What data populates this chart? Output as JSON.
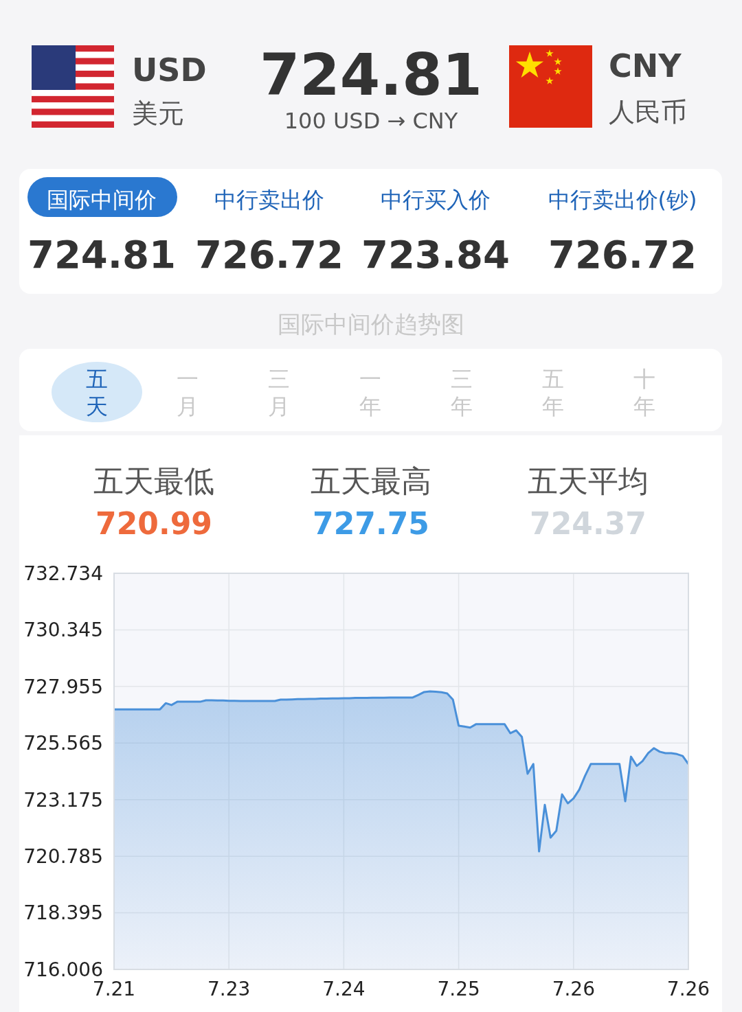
{
  "chart_data": {
    "type": "area",
    "title": "国际中间价趋势图",
    "annotations": [
      "USD",
      "美元",
      "724.81",
      "100 USD → CNY",
      "CNY",
      "人民币",
      "国际中间价",
      "中行卖出价",
      "中行买入价",
      "中行卖出价(钞)",
      "724.81",
      "726.72",
      "723.84",
      "726.72",
      "五天",
      "一月",
      "三月",
      "一年",
      "三年",
      "五年",
      "十年",
      "五天最低",
      "720.99",
      "五天最高",
      "727.75",
      "五天平均",
      "724.37"
    ],
    "categories": [
      "7.21",
      null,
      null,
      null,
      null,
      null,
      null,
      null,
      null,
      null,
      null,
      null,
      null,
      null,
      null,
      null,
      null,
      null,
      null,
      null,
      "7.23",
      null,
      null,
      null,
      null,
      null,
      null,
      null,
      null,
      null,
      null,
      null,
      null,
      null,
      null,
      null,
      null,
      null,
      null,
      null,
      "7.24",
      null,
      null,
      null,
      null,
      null,
      null,
      null,
      null,
      null,
      null,
      null,
      null,
      null,
      null,
      null,
      null,
      null,
      null,
      null,
      "7.25",
      null,
      null,
      null,
      null,
      null,
      null,
      null,
      null,
      null,
      null,
      null,
      null,
      null,
      null,
      null,
      null,
      null,
      null,
      null,
      "7.26",
      null,
      null,
      null,
      null,
      null,
      null,
      null,
      null,
      null,
      null,
      null,
      null,
      null,
      null,
      null,
      null,
      null,
      null,
      null,
      "7.26"
    ],
    "series": [
      {
        "color": "#4a90d9",
        "values": [
          726.99,
          726.99,
          726.99,
          726.99,
          726.99,
          726.99,
          726.99,
          726.99,
          726.99,
          727.25,
          727.17,
          727.31,
          727.31,
          727.31,
          727.31,
          727.31,
          727.37,
          727.37,
          727.36,
          727.36,
          727.35,
          727.35,
          727.34,
          727.34,
          727.34,
          727.34,
          727.34,
          727.34,
          727.34,
          727.4,
          727.4,
          727.41,
          727.42,
          727.42,
          727.43,
          727.43,
          727.44,
          727.44,
          727.45,
          727.45,
          727.46,
          727.46,
          727.47,
          727.47,
          727.47,
          727.48,
          727.48,
          727.48,
          727.49,
          727.49,
          727.49,
          727.49,
          727.49,
          727.6,
          727.72,
          727.75,
          727.73,
          727.71,
          727.66,
          727.4,
          726.3,
          726.26,
          726.22,
          726.36,
          726.36,
          726.36,
          726.36,
          726.36,
          726.36,
          725.98,
          726.1,
          725.83,
          724.27,
          724.68,
          720.99,
          722.96,
          721.57,
          721.86,
          723.4,
          723.02,
          723.23,
          723.6,
          724.18,
          724.68,
          724.68,
          724.68,
          724.68,
          724.68,
          724.68,
          723.11,
          724.99,
          724.6,
          724.8,
          725.14,
          725.35,
          725.2,
          725.14,
          725.14,
          725.1,
          725.02,
          724.68
        ]
      }
    ],
    "ylim": [
      716.006,
      732.734
    ],
    "yticks": [
      716.006,
      718.395,
      720.785,
      723.175,
      725.565,
      727.955,
      730.345,
      732.734
    ],
    "grid": true
  }
}
